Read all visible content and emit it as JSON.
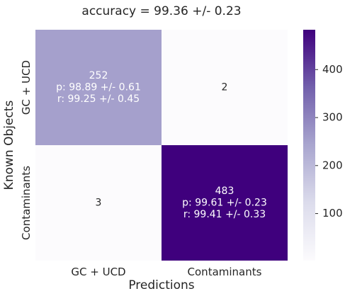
{
  "chart_data": {
    "type": "heatmap",
    "title": "accuracy = 99.36 +/- 0.23",
    "xlabel": "Predictions",
    "ylabel": "Known Objects",
    "x_categories": [
      "GC + UCD",
      "Contaminants"
    ],
    "y_categories": [
      "GC + UCD",
      "Contaminants"
    ],
    "values": [
      [
        252,
        2
      ],
      [
        3,
        483
      ]
    ],
    "annotations": [
      [
        [
          "252",
          "p: 98.89 +/- 0.61",
          "r: 99.25 +/- 0.45"
        ],
        [
          "2"
        ]
      ],
      [
        [
          "3"
        ],
        [
          "483",
          "p: 99.61 +/- 0.23",
          "r: 99.41 +/- 0.33"
        ]
      ]
    ],
    "colorbar": {
      "ticks": [
        100,
        200,
        300,
        400
      ],
      "tick_labels": [
        "100",
        "200",
        "300",
        "400"
      ],
      "range": [
        2,
        483
      ],
      "colormap": "Purples",
      "color_low": "#fcfbfd",
      "color_mid": "#a9a6cf",
      "color_high": "#3f007d"
    },
    "grid": false,
    "legend": "colorbar-right"
  }
}
